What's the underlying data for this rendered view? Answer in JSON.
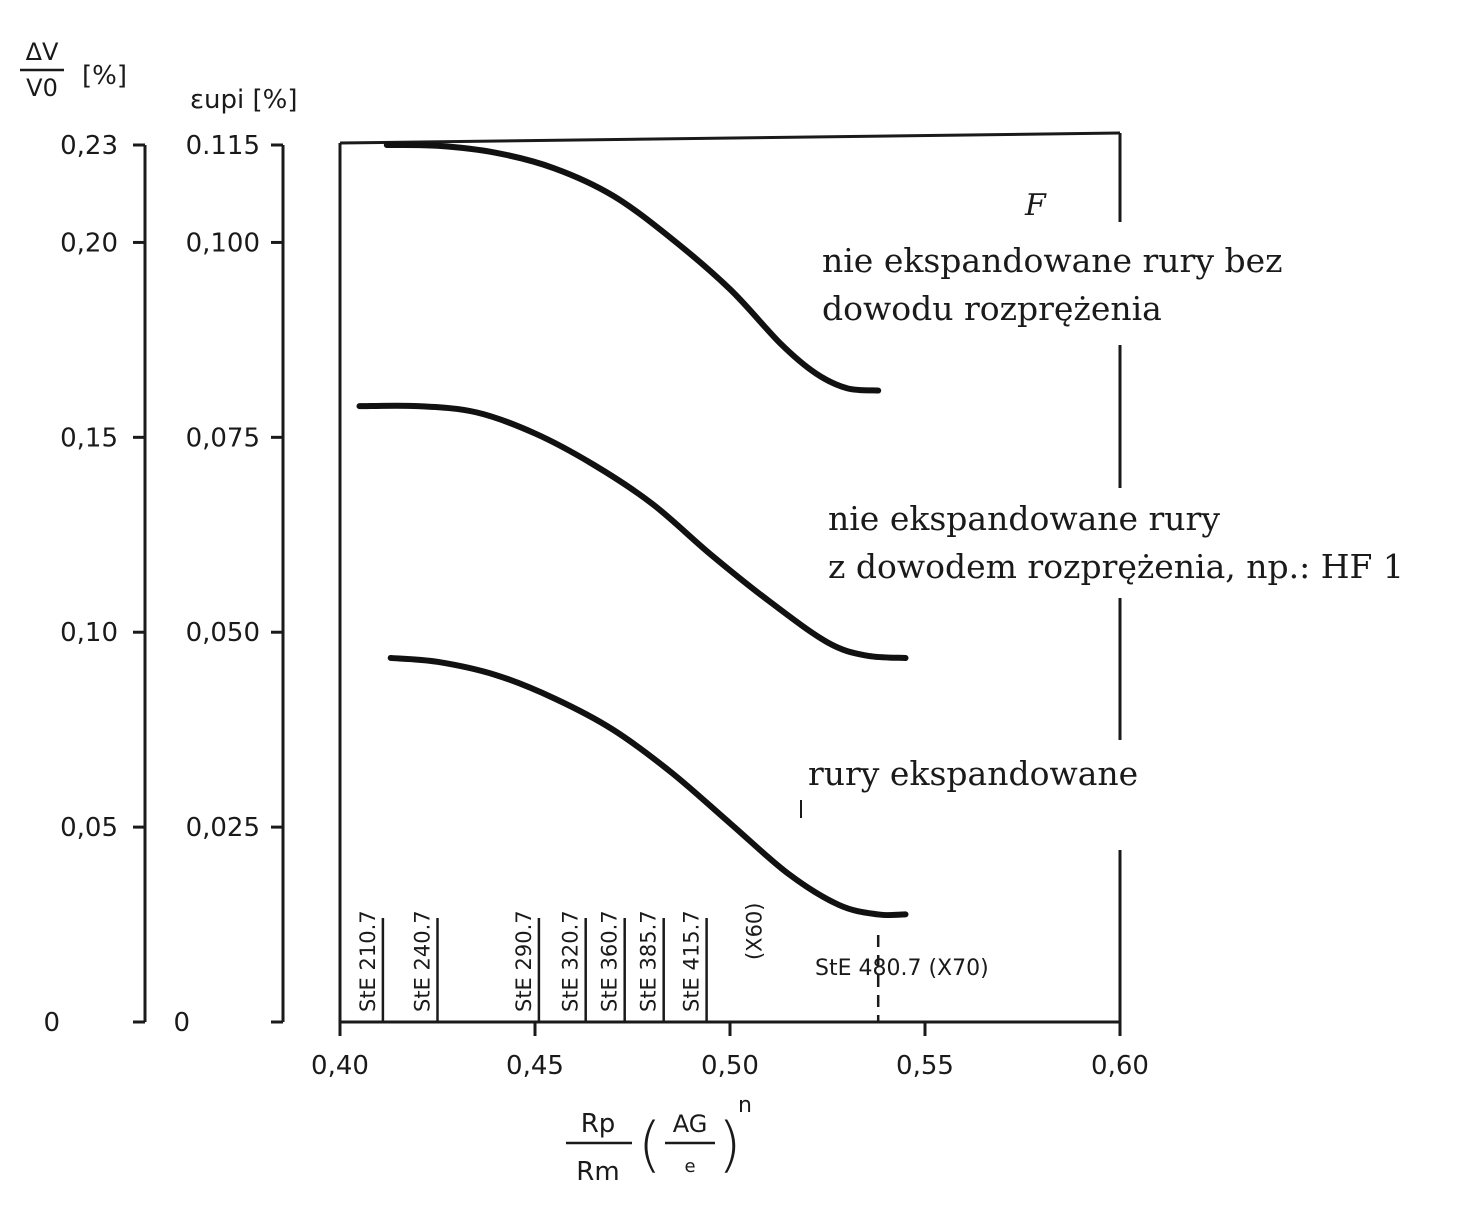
{
  "chart_data": {
    "type": "line",
    "x_range": [
      0.4,
      0.6
    ],
    "x_ticks": [
      "0,40",
      "0,45",
      "0,50",
      "0,55",
      "0,60"
    ],
    "x_tick_values": [
      0.4,
      0.45,
      0.5,
      0.55,
      0.6
    ],
    "xlabel": {
      "top": "Rp",
      "bottom": "Rm",
      "paren_top": "AG",
      "paren_bottom": "e",
      "exponent": "n"
    },
    "left_axis": {
      "label_top": "ΔV",
      "label_bottom": "V0",
      "unit": "[%]",
      "ylim": [
        0,
        0.23
      ],
      "ticks": [
        "0",
        "0,05",
        "0,10",
        "0,15",
        "0,20",
        "0,23"
      ],
      "tick_values": [
        0,
        0.05,
        0.1,
        0.15,
        0.2,
        0.225
      ]
    },
    "right_axis": {
      "label": "εupi [%]",
      "ylim": [
        0,
        0.115
      ],
      "ticks": [
        "0",
        "0,025",
        "0,050",
        "0,075",
        "0,100",
        "0.115"
      ],
      "tick_values": [
        0,
        0.025,
        0.05,
        0.075,
        0.1,
        0.1125
      ]
    },
    "grid": false,
    "series": [
      {
        "name": "nie ekspandowane rury bez dowodu rozprężenia",
        "label_lines": [
          "nie ekspandowane rury bez",
          "dowodu rozprężenia"
        ],
        "points": [
          [
            0.412,
            0.1125
          ],
          [
            0.425,
            0.1124
          ],
          [
            0.44,
            0.1115
          ],
          [
            0.455,
            0.1095
          ],
          [
            0.47,
            0.106
          ],
          [
            0.485,
            0.1005
          ],
          [
            0.5,
            0.094
          ],
          [
            0.513,
            0.087
          ],
          [
            0.522,
            0.0832
          ],
          [
            0.53,
            0.0813
          ],
          [
            0.538,
            0.081
          ]
        ]
      },
      {
        "name": "nie ekspandowane rury z dowodem rozprężenia, np.: HF 1",
        "label_lines": [
          "nie ekspandowane rury",
          "z dowodem rozprężenia, np.: HF 1"
        ],
        "points": [
          [
            0.405,
            0.079
          ],
          [
            0.42,
            0.079
          ],
          [
            0.435,
            0.0782
          ],
          [
            0.45,
            0.0755
          ],
          [
            0.465,
            0.0715
          ],
          [
            0.48,
            0.0665
          ],
          [
            0.495,
            0.06
          ],
          [
            0.51,
            0.054
          ],
          [
            0.525,
            0.0487
          ],
          [
            0.535,
            0.047
          ],
          [
            0.545,
            0.0467
          ]
        ]
      },
      {
        "name": "rury ekspandowane",
        "label_lines": [
          "rury ekspandowane"
        ],
        "points": [
          [
            0.413,
            0.0467
          ],
          [
            0.425,
            0.0462
          ],
          [
            0.44,
            0.0445
          ],
          [
            0.455,
            0.0415
          ],
          [
            0.47,
            0.0375
          ],
          [
            0.485,
            0.032
          ],
          [
            0.5,
            0.0255
          ],
          [
            0.515,
            0.019
          ],
          [
            0.528,
            0.015
          ],
          [
            0.538,
            0.0138
          ],
          [
            0.545,
            0.0138
          ]
        ]
      }
    ],
    "steel_grades": [
      {
        "label": "StE 210.7",
        "x": 0.411
      },
      {
        "label": "StE 240.7",
        "x": 0.425
      },
      {
        "label": "StE 290.7",
        "x": 0.451
      },
      {
        "label": "StE 320.7",
        "x": 0.463
      },
      {
        "label": "StE 360.7",
        "x": 0.473
      },
      {
        "label": "StE 385.7",
        "x": 0.483
      },
      {
        "label": "StE 415.7",
        "x": 0.494
      },
      {
        "label": "(X60)",
        "x": 0.504
      },
      {
        "label": "StE 480.7 (X70)",
        "x": 0.538
      }
    ],
    "corner_mark": "F",
    "legend": "none"
  }
}
